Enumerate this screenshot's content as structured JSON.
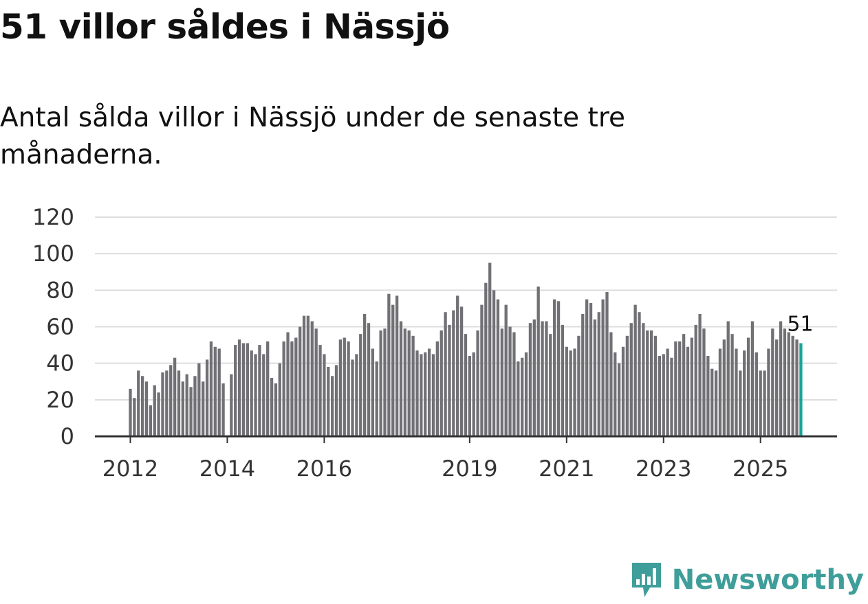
{
  "title": "51 villor såldes i Nässjö",
  "subtitle": "Antal sålda villor i Nässjö under de senaste tre månaderna.",
  "brand": {
    "name": "Newsworthy",
    "icon": "bar-chart-logo-icon",
    "color": "#3f9e99"
  },
  "chart_data": {
    "type": "bar",
    "title": "51 villor såldes i Nässjö",
    "xlabel": "",
    "ylabel": "",
    "ylim": [
      0,
      120
    ],
    "yticks": [
      0,
      20,
      40,
      60,
      80,
      100,
      120
    ],
    "start": "2012-01",
    "xticks": [
      {
        "label": "2012",
        "index": 0
      },
      {
        "label": "2014",
        "index": 24
      },
      {
        "label": "2016",
        "index": 48
      },
      {
        "label": "2019",
        "index": 84
      },
      {
        "label": "2021",
        "index": 108
      },
      {
        "label": "2023",
        "index": 132
      },
      {
        "label": "2025",
        "index": 156
      }
    ],
    "bar_color": "#717075",
    "highlight_color": "#1aa59a",
    "highlight_label": "51",
    "values": [
      26,
      21,
      36,
      33,
      30,
      17,
      28,
      24,
      35,
      36,
      39,
      43,
      36,
      30,
      34,
      27,
      33,
      40,
      30,
      42,
      52,
      49,
      48,
      29,
      null,
      34,
      50,
      53,
      51,
      51,
      47,
      45,
      50,
      45,
      52,
      32,
      29,
      40,
      52,
      57,
      52,
      54,
      60,
      66,
      66,
      63,
      59,
      50,
      45,
      38,
      33,
      39,
      53,
      54,
      52,
      42,
      45,
      56,
      67,
      62,
      48,
      41,
      58,
      59,
      78,
      72,
      77,
      63,
      59,
      58,
      55,
      47,
      45,
      46,
      48,
      45,
      52,
      58,
      68,
      61,
      69,
      77,
      71,
      56,
      44,
      46,
      58,
      72,
      84,
      95,
      80,
      75,
      59,
      72,
      60,
      57,
      41,
      43,
      46,
      62,
      64,
      82,
      63,
      63,
      56,
      75,
      74,
      61,
      49,
      47,
      48,
      55,
      67,
      75,
      73,
      64,
      68,
      75,
      79,
      57,
      46,
      40,
      49,
      55,
      62,
      72,
      68,
      62,
      58,
      58,
      55,
      44,
      45,
      48,
      43,
      52,
      52,
      56,
      49,
      54,
      61,
      67,
      59,
      44,
      37,
      36,
      48,
      53,
      63,
      56,
      48,
      36,
      47,
      54,
      63,
      46,
      36,
      36,
      48,
      59,
      53,
      63,
      59,
      57,
      55,
      53,
      51
    ]
  }
}
